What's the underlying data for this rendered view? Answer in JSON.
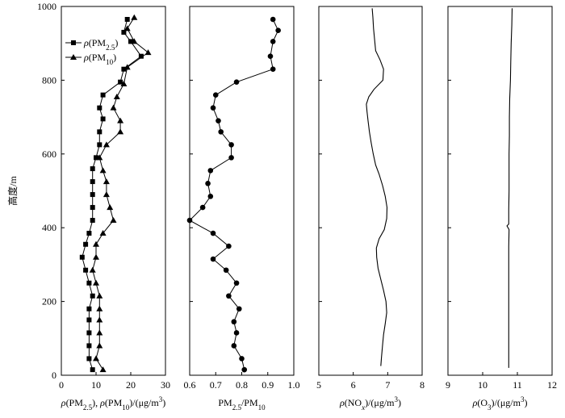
{
  "y_axis": {
    "label": "高度/m",
    "ticks": [
      0,
      200,
      400,
      600,
      800,
      1000
    ],
    "ylim": [
      0,
      1000
    ]
  },
  "chart_data": [
    {
      "type": "line",
      "id": "pm",
      "xlabel_parts": [
        {
          "text": "ρ(PM",
          "style": "italic-rho"
        },
        {
          "text": "2.5",
          "style": "sub"
        },
        {
          "text": "), ",
          "style": "normal"
        },
        {
          "text": "ρ(PM",
          "style": "italic-rho"
        },
        {
          "text": "10",
          "style": "sub"
        },
        {
          "text": ")/(μg/m",
          "style": "normal"
        },
        {
          "text": "3",
          "style": "sup"
        },
        {
          "text": ")",
          "style": "normal"
        }
      ],
      "xlim": [
        0,
        30
      ],
      "xticks": [
        0,
        10,
        20,
        30
      ],
      "legend_position": "upper-left",
      "series": [
        {
          "name_parts": [
            {
              "text": "ρ(PM",
              "style": "italic-rho"
            },
            {
              "text": "2.5",
              "style": "sub"
            },
            {
              "text": ")",
              "style": "normal"
            }
          ],
          "marker": "square",
          "points": [
            [
              19,
              965
            ],
            [
              18,
              930
            ],
            [
              20,
              905
            ],
            [
              23,
              865
            ],
            [
              18,
              830
            ],
            [
              17,
              795
            ],
            [
              12,
              760
            ],
            [
              11,
              725
            ],
            [
              12,
              695
            ],
            [
              11,
              660
            ],
            [
              11,
              625
            ],
            [
              10,
              590
            ],
            [
              9,
              560
            ],
            [
              9,
              525
            ],
            [
              9,
              490
            ],
            [
              9,
              455
            ],
            [
              9,
              420
            ],
            [
              8,
              385
            ],
            [
              7,
              355
            ],
            [
              6,
              320
            ],
            [
              7,
              285
            ],
            [
              8,
              250
            ],
            [
              9,
              215
            ],
            [
              8,
              180
            ],
            [
              8,
              150
            ],
            [
              8,
              115
            ],
            [
              8,
              80
            ],
            [
              8,
              45
            ],
            [
              9,
              15
            ]
          ]
        },
        {
          "name_parts": [
            {
              "text": "ρ(PM",
              "style": "italic-rho"
            },
            {
              "text": "10",
              "style": "sub"
            },
            {
              "text": ")",
              "style": "normal"
            }
          ],
          "marker": "triangle",
          "points": [
            [
              21,
              970
            ],
            [
              19,
              940
            ],
            [
              21,
              905
            ],
            [
              25,
              875
            ],
            [
              19,
              835
            ],
            [
              18,
              790
            ],
            [
              16,
              755
            ],
            [
              15,
              725
            ],
            [
              17,
              690
            ],
            [
              17,
              660
            ],
            [
              13,
              625
            ],
            [
              11,
              590
            ],
            [
              12,
              555
            ],
            [
              13,
              525
            ],
            [
              13,
              490
            ],
            [
              14,
              455
            ],
            [
              15,
              420
            ],
            [
              12,
              385
            ],
            [
              10,
              355
            ],
            [
              10,
              320
            ],
            [
              9,
              285
            ],
            [
              10,
              250
            ],
            [
              11,
              215
            ],
            [
              11,
              180
            ],
            [
              11,
              150
            ],
            [
              11,
              115
            ],
            [
              11,
              80
            ],
            [
              10,
              45
            ],
            [
              12,
              15
            ]
          ]
        }
      ]
    },
    {
      "type": "line",
      "id": "ratio",
      "xlabel_parts": [
        {
          "text": "PM",
          "style": "normal"
        },
        {
          "text": "2.5",
          "style": "sub"
        },
        {
          "text": "/PM",
          "style": "normal"
        },
        {
          "text": "10",
          "style": "sub"
        }
      ],
      "xlim": [
        0.6,
        1.0
      ],
      "xticks": [
        0.6,
        0.7,
        0.8,
        0.9,
        1.0
      ],
      "series": [
        {
          "marker": "circle",
          "points": [
            [
              0.92,
              965
            ],
            [
              0.94,
              935
            ],
            [
              0.92,
              905
            ],
            [
              0.91,
              865
            ],
            [
              0.92,
              830
            ],
            [
              0.78,
              795
            ],
            [
              0.7,
              760
            ],
            [
              0.69,
              725
            ],
            [
              0.71,
              690
            ],
            [
              0.72,
              660
            ],
            [
              0.76,
              625
            ],
            [
              0.76,
              590
            ],
            [
              0.68,
              555
            ],
            [
              0.67,
              520
            ],
            [
              0.68,
              485
            ],
            [
              0.65,
              455
            ],
            [
              0.6,
              420
            ],
            [
              0.69,
              385
            ],
            [
              0.75,
              350
            ],
            [
              0.69,
              315
            ],
            [
              0.74,
              285
            ],
            [
              0.78,
              250
            ],
            [
              0.75,
              215
            ],
            [
              0.79,
              180
            ],
            [
              0.77,
              145
            ],
            [
              0.78,
              115
            ],
            [
              0.77,
              80
            ],
            [
              0.8,
              45
            ],
            [
              0.81,
              15
            ]
          ]
        }
      ]
    },
    {
      "type": "line",
      "id": "nox",
      "xlabel_parts": [
        {
          "text": "ρ(NO",
          "style": "italic-rho"
        },
        {
          "text": "x",
          "style": "sub-italic"
        },
        {
          "text": ")/(μg/m",
          "style": "normal"
        },
        {
          "text": "3",
          "style": "sup"
        },
        {
          "text": ")",
          "style": "normal"
        }
      ],
      "xlim": [
        5,
        8
      ],
      "xticks": [
        5,
        6,
        7,
        8
      ],
      "series": [
        {
          "marker": "none",
          "points": [
            [
              6.55,
              995
            ],
            [
              6.57,
              970
            ],
            [
              6.59,
              940
            ],
            [
              6.62,
              910
            ],
            [
              6.65,
              880
            ],
            [
              6.78,
              855
            ],
            [
              6.88,
              830
            ],
            [
              6.86,
              800
            ],
            [
              6.6,
              775
            ],
            [
              6.45,
              755
            ],
            [
              6.38,
              735
            ],
            [
              6.4,
              715
            ],
            [
              6.43,
              690
            ],
            [
              6.47,
              660
            ],
            [
              6.52,
              630
            ],
            [
              6.58,
              600
            ],
            [
              6.65,
              570
            ],
            [
              6.75,
              545
            ],
            [
              6.85,
              515
            ],
            [
              6.93,
              485
            ],
            [
              6.98,
              455
            ],
            [
              6.97,
              425
            ],
            [
              6.9,
              395
            ],
            [
              6.75,
              370
            ],
            [
              6.67,
              345
            ],
            [
              6.68,
              320
            ],
            [
              6.72,
              290
            ],
            [
              6.8,
              260
            ],
            [
              6.88,
              230
            ],
            [
              6.95,
              200
            ],
            [
              6.97,
              170
            ],
            [
              6.93,
              140
            ],
            [
              6.88,
              110
            ],
            [
              6.85,
              80
            ],
            [
              6.82,
              50
            ],
            [
              6.8,
              25
            ]
          ]
        }
      ]
    },
    {
      "type": "line",
      "id": "o3",
      "xlabel_parts": [
        {
          "text": "ρ(O",
          "style": "italic-rho"
        },
        {
          "text": "3",
          "style": "sub"
        },
        {
          "text": ")/(μg/m",
          "style": "normal"
        },
        {
          "text": "3",
          "style": "sup"
        },
        {
          "text": ")",
          "style": "normal"
        }
      ],
      "xlim": [
        9,
        12
      ],
      "xticks": [
        9,
        10,
        11,
        12
      ],
      "series": [
        {
          "marker": "none",
          "points": [
            [
              10.85,
              995
            ],
            [
              10.84,
              950
            ],
            [
              10.82,
              900
            ],
            [
              10.81,
              850
            ],
            [
              10.8,
              800
            ],
            [
              10.78,
              750
            ],
            [
              10.77,
              700
            ],
            [
              10.77,
              650
            ],
            [
              10.76,
              600
            ],
            [
              10.76,
              550
            ],
            [
              10.76,
              500
            ],
            [
              10.75,
              450
            ],
            [
              10.75,
              410
            ],
            [
              10.7,
              405
            ],
            [
              10.76,
              395
            ],
            [
              10.75,
              350
            ],
            [
              10.75,
              300
            ],
            [
              10.75,
              250
            ],
            [
              10.75,
              200
            ],
            [
              10.75,
              150
            ],
            [
              10.75,
              100
            ],
            [
              10.75,
              50
            ],
            [
              10.75,
              20
            ]
          ]
        }
      ]
    }
  ]
}
